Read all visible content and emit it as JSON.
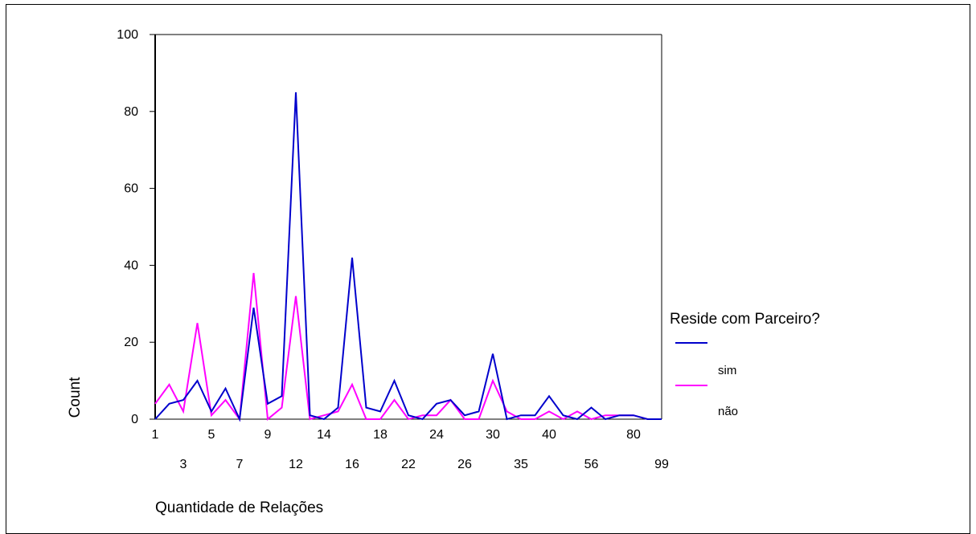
{
  "chart_data": {
    "type": "line",
    "ylabel": "Count",
    "xlabel": "Quantidade de Relações",
    "ylim": [
      0,
      100
    ],
    "yticks": [
      "0",
      "20",
      "40",
      "60",
      "80",
      "100"
    ],
    "grid": false,
    "legend": {
      "title": "Reside com Parceiro?",
      "placement": "right",
      "entries": [
        "sim",
        "não"
      ]
    },
    "xtick_labels_row1": [
      "1",
      "5",
      "9",
      "14",
      "18",
      "24",
      "30",
      "40",
      "80"
    ],
    "xtick_labels_row2": [
      "3",
      "7",
      "12",
      "16",
      "22",
      "26",
      "35",
      "56",
      "99"
    ],
    "x": [
      "1",
      "2",
      "3",
      "4",
      "5",
      "6",
      "7",
      "8",
      "9",
      "10",
      "12",
      "13",
      "14",
      "15",
      "16",
      "17",
      "18",
      "20",
      "22",
      "23",
      "24",
      "25",
      "26",
      "28",
      "30",
      "33",
      "35",
      "38",
      "40",
      "45",
      "50",
      "56",
      "60",
      "70",
      "80",
      "90",
      "99"
    ],
    "series": [
      {
        "name": "sim",
        "color": "#0000cc",
        "values": [
          0,
          4,
          5,
          10,
          2,
          8,
          0,
          29,
          4,
          6,
          85,
          1,
          0,
          3,
          42,
          3,
          2,
          10,
          1,
          0,
          4,
          5,
          1,
          2,
          17,
          0,
          1,
          1,
          6,
          1,
          0,
          3,
          0,
          1,
          1,
          0,
          0
        ]
      },
      {
        "name": "não",
        "color": "#ff00ff",
        "values": [
          4,
          9,
          2,
          25,
          1,
          5,
          0,
          38,
          0,
          3,
          32,
          0,
          1,
          2,
          9,
          0,
          0,
          5,
          0,
          1,
          1,
          5,
          0,
          0,
          10,
          2,
          0,
          0,
          2,
          0,
          2,
          0,
          1,
          1,
          1,
          0,
          0
        ]
      }
    ]
  }
}
